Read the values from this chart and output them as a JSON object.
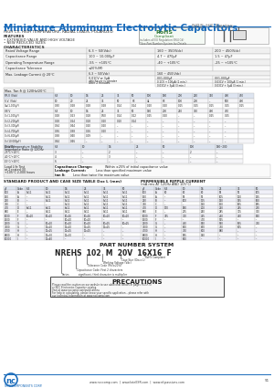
{
  "title": "Miniature Aluminum Electrolytic Capacitors",
  "series": "NRE-HS Series",
  "bg_color": "#ffffff",
  "title_color": "#1a6bba",
  "line_color": "#1a6bba",
  "features_header": "HIGH CV, HIGH TEMPERATURE, RADIAL LEADS, POLARIZED",
  "features": [
    "FEATURES",
    "• EXTENDED VALUE AND HIGH VOLTAGE",
    "• NEW REDUCED SIZES"
  ],
  "characteristics_header": "CHARACTERISTICS",
  "char_rows": [
    [
      "Rated Voltage Range",
      "6.3 ~ 50(Vdc)",
      "160 ~ 350(Vdc)",
      "200 ~ 450(Vdc)"
    ],
    [
      "Capacitance Range",
      "100 ~ 10,000µF",
      "4.7 ~ 470µF",
      "1.5 ~ 47µF"
    ],
    [
      "Operating Temperature Range",
      "-55 ~ +105°C",
      "-40 ~ +105°C",
      "-25 ~ +105°C"
    ],
    [
      "Capacitance Tolerance",
      "±20%(M)",
      "",
      ""
    ]
  ],
  "rohs_green": "#3a7d3a",
  "page_num": "91",
  "footer_urls": "www.ncccomp.com  |  www.loteESR.com  |  www.nf-passives.com"
}
